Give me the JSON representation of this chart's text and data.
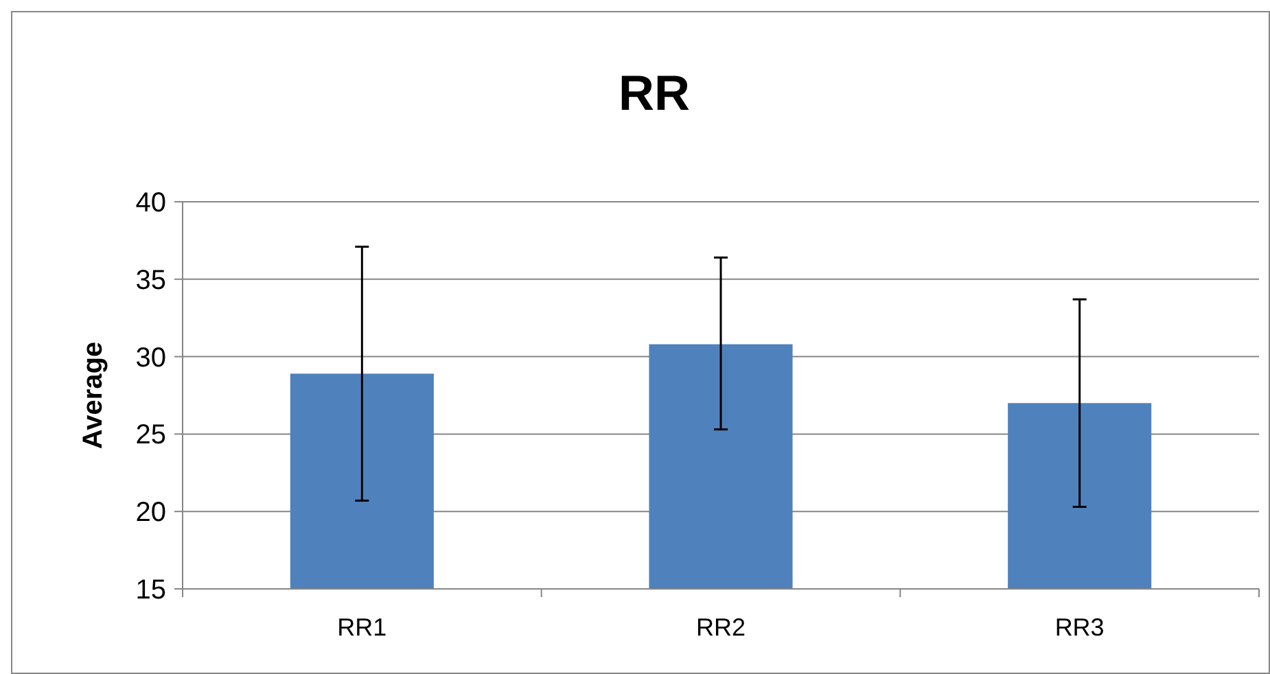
{
  "chart_data": {
    "type": "bar",
    "title": "RR",
    "ylabel": "Average",
    "categories": [
      "RR1",
      "RR2",
      "RR3"
    ],
    "values": [
      28.9,
      30.8,
      27.0
    ],
    "errors": [
      [
        20.7,
        37.1
      ],
      [
        25.3,
        36.4
      ],
      [
        20.3,
        33.7
      ]
    ],
    "color": "#4f81bd",
    "ylim": [
      15,
      40
    ],
    "yticks": [
      15,
      20,
      25,
      30,
      35,
      40
    ],
    "grid": "y"
  }
}
